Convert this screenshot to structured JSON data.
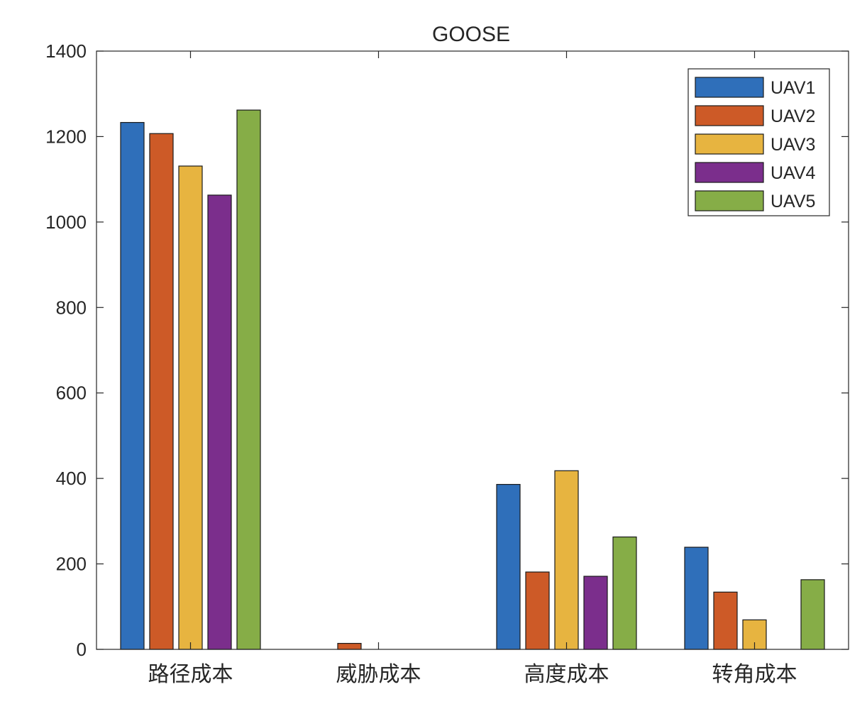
{
  "chart_data": {
    "type": "bar",
    "title": "GOOSE",
    "xlabel": "",
    "ylabel": "",
    "categories": [
      "路径成本",
      "威胁成本",
      "高度成本",
      "转角成本"
    ],
    "ylim": [
      0,
      1400
    ],
    "yticks": [
      0,
      200,
      400,
      600,
      800,
      1000,
      1200,
      1400
    ],
    "legend_position": "top-right",
    "grid": false,
    "series": [
      {
        "name": "UAV1",
        "color": "#2f6fba",
        "values": [
          1233,
          0,
          386,
          239
        ]
      },
      {
        "name": "UAV2",
        "color": "#cd5a27",
        "values": [
          1207,
          14,
          181,
          134
        ]
      },
      {
        "name": "UAV3",
        "color": "#e7b440",
        "values": [
          1131,
          0,
          418,
          69
        ]
      },
      {
        "name": "UAV4",
        "color": "#7b2e8c",
        "values": [
          1063,
          0,
          171,
          0
        ]
      },
      {
        "name": "UAV5",
        "color": "#86ad47",
        "values": [
          1262,
          0,
          263,
          163
        ]
      }
    ]
  }
}
